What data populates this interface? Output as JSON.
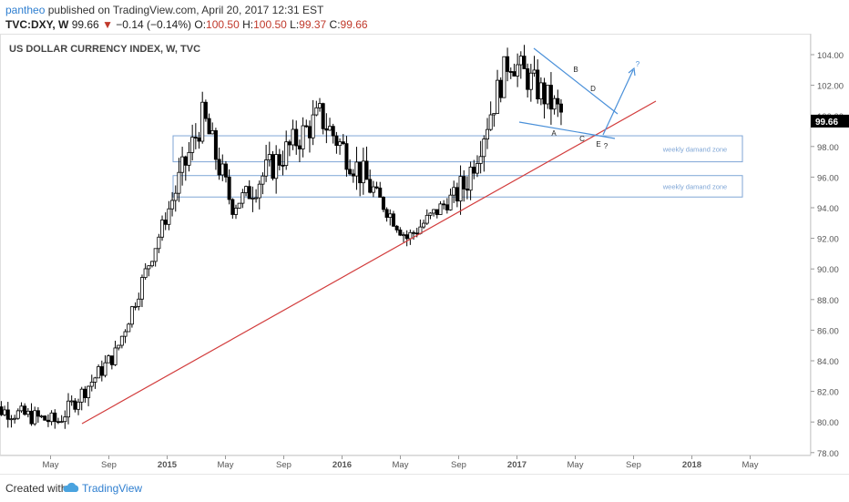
{
  "header": {
    "user": "pantheo",
    "published_text": "published on TradingView.com, April 20, 2017 12:31 EST",
    "symbol": "TVC:DXY, W",
    "last": "99.66",
    "change_arrow": "▼",
    "change": "−0.14 (−0.14%)",
    "o_label": "O:",
    "o_value": "100.50",
    "h_label": "H:",
    "h_value": "100.50",
    "l_label": "L:",
    "l_value": "99.37",
    "c_label": "C:",
    "c_value": "99.66"
  },
  "footer": {
    "created": "Created with",
    "brand": "TradingView",
    "logo_icon": "tradingview-cloud-icon"
  },
  "colors": {
    "candle_up": "#ffffff",
    "candle_down": "#000000",
    "trendline": "#d23c3c",
    "pattern": "#4a90d9",
    "zone": "#7fa6d6",
    "price_badge": "#000000"
  },
  "chart_data": {
    "type": "candlestick",
    "title": "US DOLLAR CURRENCY INDEX, W, TVC",
    "current_price": "99.66",
    "ylim": [
      77.5,
      104.8
    ],
    "y_ticks": [
      "104.00",
      "102.00",
      "100.00",
      "98.00",
      "96.00",
      "94.00",
      "92.00",
      "90.00",
      "88.00",
      "86.00",
      "84.00",
      "82.00",
      "80.00",
      "78.00"
    ],
    "x_ticks": [
      "May",
      "Sep",
      "2015",
      "May",
      "Sep",
      "2016",
      "May",
      "Sep",
      "2017",
      "May",
      "Sep",
      "2018",
      "May"
    ],
    "grid": false,
    "annotations": {
      "zone_labels": [
        "weekly damand zone",
        "weekly damand zone"
      ],
      "wave_labels": [
        "A",
        "B",
        "C",
        "D",
        "E",
        "?"
      ],
      "breakout_label": "?"
    },
    "key_points": [
      {
        "date": "2014-05",
        "value": 80.0
      },
      {
        "date": "2014-09",
        "value": 84.5
      },
      {
        "date": "2015-03",
        "value": 100.0
      },
      {
        "date": "2015-05",
        "value": 94.0
      },
      {
        "date": "2015-11",
        "value": 100.0
      },
      {
        "date": "2016-05",
        "value": 92.0
      },
      {
        "date": "2016-09",
        "value": 95.5
      },
      {
        "date": "2016-12",
        "value": 103.8
      },
      {
        "date": "2017-04",
        "value": 99.66
      }
    ]
  }
}
